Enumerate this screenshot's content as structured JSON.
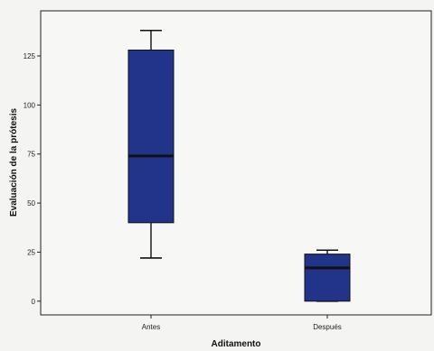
{
  "chart_data": {
    "type": "boxplot",
    "title": "",
    "xlabel": "Aditamento",
    "ylabel": "Evaluación de la prótesis",
    "ylim": [
      -7,
      148
    ],
    "yticks": [
      0,
      25,
      50,
      75,
      100,
      125
    ],
    "grid": false,
    "categories": [
      "Antes",
      "Después"
    ],
    "boxes": [
      {
        "category": "Antes",
        "whisker_low": 22,
        "q1": 40,
        "median": 74,
        "q3": 128,
        "whisker_high": 138
      },
      {
        "category": "Después",
        "whisker_low": 0,
        "q1": 0,
        "median": 17,
        "q3": 24,
        "whisker_high": 26
      }
    ],
    "box_color": "#22348a",
    "median_color": "#111111"
  }
}
